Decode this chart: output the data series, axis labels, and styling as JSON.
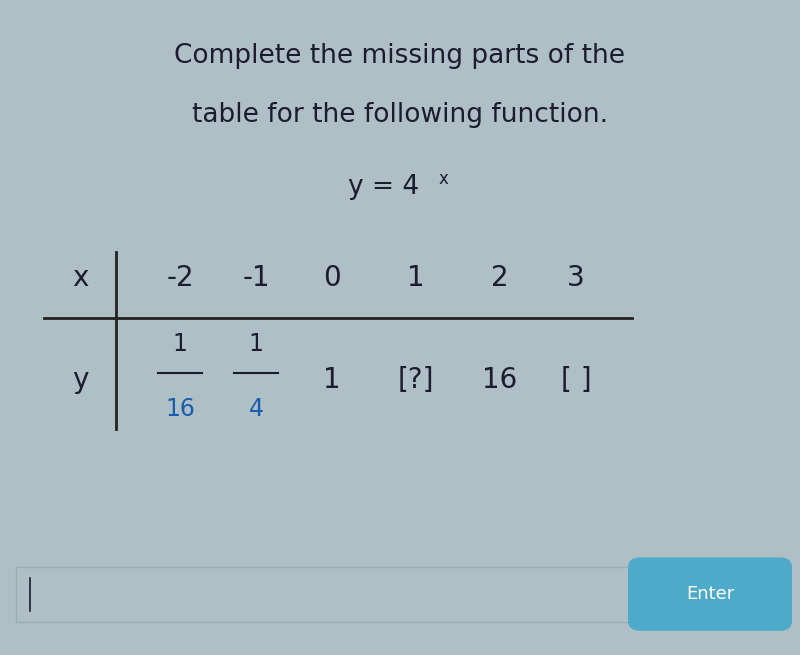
{
  "background_color": "#aebfc5",
  "title_line1": "Complete the missing parts of the",
  "title_line2": "table for the following function.",
  "title_fontsize": 19,
  "function_fontsize": 19,
  "table_x_label": "x",
  "table_y_label": "y",
  "x_values": [
    "-2",
    "-1",
    "0",
    "1",
    "2",
    "3"
  ],
  "y_values_top": [
    "1",
    "1",
    "1",
    "[?]",
    "16",
    "[ ]"
  ],
  "y_values_bot": [
    "16",
    "4",
    "",
    "",
    "",
    ""
  ],
  "fraction_pairs": [
    true,
    true,
    false,
    false,
    false,
    false
  ],
  "text_color_dark": "#1c1c2e",
  "text_color_blue": "#1a5cb0",
  "frac_num_color": "#1c1c2e",
  "frac_den_color": "#1a5cb0",
  "frac_bar_color": "#1c1c2e",
  "table_line_color": "#222222",
  "enter_button_color": "#4daac8",
  "enter_button_text": "Enter",
  "enter_button_fontsize": 13,
  "input_box_color": "#c8d4d8",
  "input_box_border": "#9aacb2"
}
